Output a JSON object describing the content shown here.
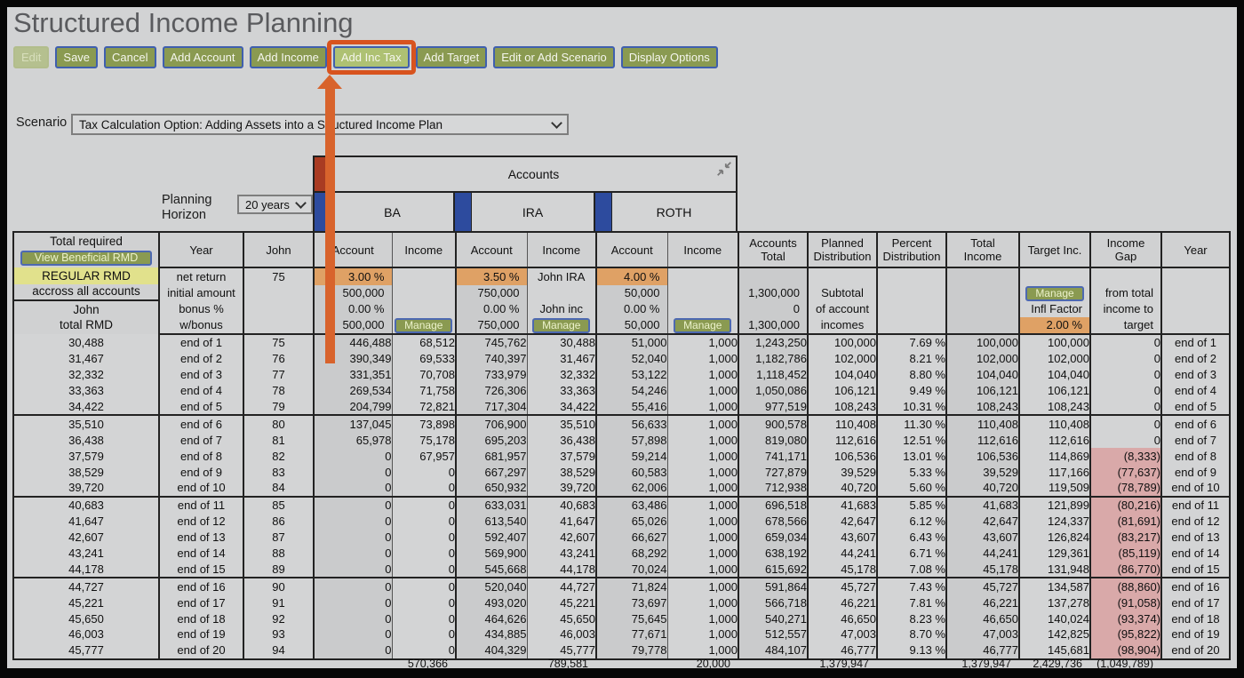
{
  "page": {
    "title": "Structured Income Planning"
  },
  "colors": {
    "accent_orange": "#d8632c",
    "highlight_ring": "#d8531e",
    "button_green": "#8a9a51",
    "button_green_light": "#aec173",
    "button_border_blue": "#3f5fae",
    "cell_orange": "#dfa165",
    "negative_pink": "#d9a9a9",
    "rmd_yellow": "#e1e18c",
    "group_red": "#a93b22",
    "group_blue": "#2d4b9e",
    "background_gray": "#d2d3d4"
  },
  "toolbar": {
    "buttons": [
      {
        "label": "Edit",
        "state": "disabled"
      },
      {
        "label": "Save",
        "state": "normal"
      },
      {
        "label": "Cancel",
        "state": "normal"
      },
      {
        "label": "Add Account",
        "state": "normal"
      },
      {
        "label": "Add Income",
        "state": "normal"
      },
      {
        "label": "Add Inc Tax",
        "state": "highlighted"
      },
      {
        "label": "Add Target",
        "state": "normal"
      },
      {
        "label": "Edit or Add Scenario",
        "state": "normal"
      },
      {
        "label": "Display Options",
        "state": "normal"
      }
    ]
  },
  "annotation": {
    "highlighted_button": "Add Inc Tax"
  },
  "scenario": {
    "label": "Scenario",
    "selected": "Tax Calculation Option: Adding Assets into a Structured Income Plan"
  },
  "planning_horizon": {
    "label_line1": "Planning",
    "label_line2": "Horizon",
    "selected": "20 years"
  },
  "accounts_panel": {
    "title": "Accounts",
    "groups": [
      "BA",
      "IRA",
      "ROTH"
    ],
    "collapse_icon": "collapse-diagonal-icon"
  },
  "table": {
    "columns": [
      "Total required",
      "Year",
      "John",
      "Account",
      "Income",
      "Account",
      "Income",
      "Account",
      "Income",
      "Accounts Total",
      "Planned Distribution",
      "Percent Distribution",
      "Total Income",
      "Target Inc.",
      "Income Gap",
      "Year"
    ],
    "left_header": {
      "line1": "Total required",
      "button": "View Beneficial RMD",
      "line2": "REGULAR RMD",
      "line3": "accross all accounts",
      "line4": "John",
      "line5": "total RMD"
    },
    "setup": {
      "row_labels": [
        "net return",
        "initial amount",
        "bonus %",
        "w/bonus"
      ],
      "john_age": "75",
      "ba": {
        "net_return": "3.00 %",
        "initial": "500,000",
        "bonus": "0.00 %",
        "w_bonus": "500,000",
        "manage": "Manage"
      },
      "ira": {
        "net_return": "3.50 %",
        "initial": "750,000",
        "bonus": "0.00 %",
        "w_bonus": "750,000",
        "income_name": "John IRA",
        "income_label": "John inc",
        "manage": "Manage"
      },
      "roth": {
        "net_return": "4.00 %",
        "initial": "50,000",
        "bonus": "0.00 %",
        "w_bonus": "50,000",
        "manage": "Manage"
      },
      "accounts_total": [
        "1,300,000",
        "0",
        "1,300,000"
      ],
      "planned_distribution_note": [
        "Subtotal",
        "of account",
        "incomes"
      ],
      "target": {
        "manage": "Manage",
        "infl_label": "Infl Factor",
        "infl_value": "2.00 %"
      },
      "income_gap_note": [
        "from total",
        "income to",
        "target"
      ]
    },
    "rows": [
      [
        "30,488",
        "end of 1",
        "75",
        "446,488",
        "68,512",
        "745,762",
        "30,488",
        "51,000",
        "1,000",
        "1,243,250",
        "100,000",
        "7.69 %",
        "100,000",
        "100,000",
        "0",
        "end of 1"
      ],
      [
        "31,467",
        "end of 2",
        "76",
        "390,349",
        "69,533",
        "740,397",
        "31,467",
        "52,040",
        "1,000",
        "1,182,786",
        "102,000",
        "8.21 %",
        "102,000",
        "102,000",
        "0",
        "end of 2"
      ],
      [
        "32,332",
        "end of 3",
        "77",
        "331,351",
        "70,708",
        "733,979",
        "32,332",
        "53,122",
        "1,000",
        "1,118,452",
        "104,040",
        "8.80 %",
        "104,040",
        "104,040",
        "0",
        "end of 3"
      ],
      [
        "33,363",
        "end of 4",
        "78",
        "269,534",
        "71,758",
        "726,306",
        "33,363",
        "54,246",
        "1,000",
        "1,050,086",
        "106,121",
        "9.49 %",
        "106,121",
        "106,121",
        "0",
        "end of 4"
      ],
      [
        "34,422",
        "end of 5",
        "79",
        "204,799",
        "72,821",
        "717,304",
        "34,422",
        "55,416",
        "1,000",
        "977,519",
        "108,243",
        "10.31 %",
        "108,243",
        "108,243",
        "0",
        "end of 5"
      ],
      [
        "35,510",
        "end of 6",
        "80",
        "137,045",
        "73,898",
        "706,900",
        "35,510",
        "56,633",
        "1,000",
        "900,578",
        "110,408",
        "11.30 %",
        "110,408",
        "110,408",
        "0",
        "end of 6"
      ],
      [
        "36,438",
        "end of 7",
        "81",
        "65,978",
        "75,178",
        "695,203",
        "36,438",
        "57,898",
        "1,000",
        "819,080",
        "112,616",
        "12.51 %",
        "112,616",
        "112,616",
        "0",
        "end of 7"
      ],
      [
        "37,579",
        "end of 8",
        "82",
        "0",
        "67,957",
        "681,957",
        "37,579",
        "59,214",
        "1,000",
        "741,171",
        "106,536",
        "13.01 %",
        "106,536",
        "114,869",
        "(8,333)",
        "end of 8"
      ],
      [
        "38,529",
        "end of 9",
        "83",
        "0",
        "0",
        "667,297",
        "38,529",
        "60,583",
        "1,000",
        "727,879",
        "39,529",
        "5.33 %",
        "39,529",
        "117,166",
        "(77,637)",
        "end of 9"
      ],
      [
        "39,720",
        "end of 10",
        "84",
        "0",
        "0",
        "650,932",
        "39,720",
        "62,006",
        "1,000",
        "712,938",
        "40,720",
        "5.60 %",
        "40,720",
        "119,509",
        "(78,789)",
        "end of 10"
      ],
      [
        "40,683",
        "end of 11",
        "85",
        "0",
        "0",
        "633,031",
        "40,683",
        "63,486",
        "1,000",
        "696,518",
        "41,683",
        "5.85 %",
        "41,683",
        "121,899",
        "(80,216)",
        "end of 11"
      ],
      [
        "41,647",
        "end of 12",
        "86",
        "0",
        "0",
        "613,540",
        "41,647",
        "65,026",
        "1,000",
        "678,566",
        "42,647",
        "6.12 %",
        "42,647",
        "124,337",
        "(81,691)",
        "end of 12"
      ],
      [
        "42,607",
        "end of 13",
        "87",
        "0",
        "0",
        "592,407",
        "42,607",
        "66,627",
        "1,000",
        "659,034",
        "43,607",
        "6.43 %",
        "43,607",
        "126,824",
        "(83,217)",
        "end of 13"
      ],
      [
        "43,241",
        "end of 14",
        "88",
        "0",
        "0",
        "569,900",
        "43,241",
        "68,292",
        "1,000",
        "638,192",
        "44,241",
        "6.71 %",
        "44,241",
        "129,361",
        "(85,119)",
        "end of 14"
      ],
      [
        "44,178",
        "end of 15",
        "89",
        "0",
        "0",
        "545,668",
        "44,178",
        "70,024",
        "1,000",
        "615,692",
        "45,178",
        "7.08 %",
        "45,178",
        "131,948",
        "(86,770)",
        "end of 15"
      ],
      [
        "44,727",
        "end of 16",
        "90",
        "0",
        "0",
        "520,040",
        "44,727",
        "71,824",
        "1,000",
        "591,864",
        "45,727",
        "7.43 %",
        "45,727",
        "134,587",
        "(88,860)",
        "end of 16"
      ],
      [
        "45,221",
        "end of 17",
        "91",
        "0",
        "0",
        "493,020",
        "45,221",
        "73,697",
        "1,000",
        "566,718",
        "46,221",
        "7.81 %",
        "46,221",
        "137,278",
        "(91,058)",
        "end of 17"
      ],
      [
        "45,650",
        "end of 18",
        "92",
        "0",
        "0",
        "464,626",
        "45,650",
        "75,645",
        "1,000",
        "540,271",
        "46,650",
        "8.23 %",
        "46,650",
        "140,024",
        "(93,374)",
        "end of 18"
      ],
      [
        "46,003",
        "end of 19",
        "93",
        "0",
        "0",
        "434,885",
        "46,003",
        "77,671",
        "1,000",
        "512,557",
        "47,003",
        "8.70 %",
        "47,003",
        "142,825",
        "(95,822)",
        "end of 19"
      ],
      [
        "45,777",
        "end of 20",
        "94",
        "0",
        "0",
        "404,329",
        "45,777",
        "79,778",
        "1,000",
        "484,107",
        "46,777",
        "9.13 %",
        "46,777",
        "145,681",
        "(98,904)",
        "end of 20"
      ]
    ],
    "totals": {
      "ba_income": "570,366",
      "ira_income": "789,581",
      "roth_income": "20,000",
      "planned_distribution": "1,379,947",
      "total_income": "1,379,947",
      "target_inc": "2,429,736",
      "income_gap": "(1,049,789)"
    }
  }
}
